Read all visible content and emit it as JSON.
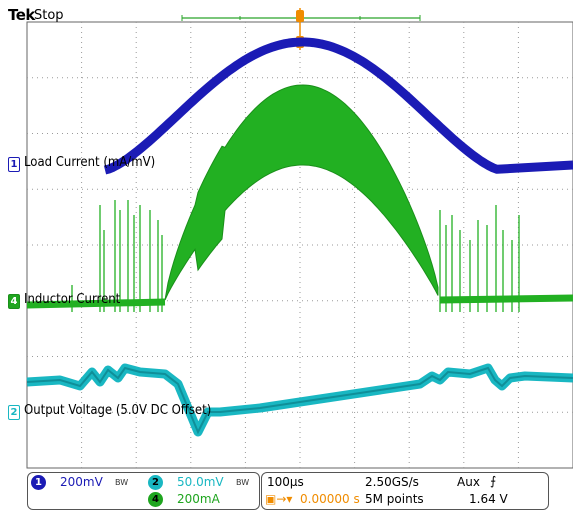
{
  "header": {
    "brand": "Tek",
    "status": "Stop"
  },
  "trace_labels": {
    "ch1": {
      "marker": "1",
      "label": "Load Current (mA/mV)"
    },
    "ch4": {
      "marker": "4",
      "label": "Inductor Current"
    },
    "ch2": {
      "marker": "2",
      "label": "Output Voltage (5.0V DC Offset)"
    }
  },
  "readouts": {
    "ch1": {
      "badge": "1",
      "scale": "200mV",
      "bw": "BW"
    },
    "ch2": {
      "badge": "2",
      "scale": "50.0mV",
      "bw": "BW"
    },
    "ch4": {
      "badge": "4",
      "scale": "200mA"
    },
    "horizontal": {
      "timebase": "100µs",
      "sample_rate": "2.50GS/s",
      "trigger_position": "0.00000 s",
      "record_length": "5M points"
    },
    "trigger": {
      "source": "Aux",
      "slope_symbol": "⨍",
      "level": "1.64 V"
    }
  },
  "colors": {
    "ch1": "#1b1bb5",
    "ch2": "#19b7c2",
    "ch4": "#1fa51f",
    "trigger": "#f08c00",
    "grid": "#9a9a9a"
  },
  "icons": {
    "trigger_marker": "trigger-t-icon",
    "slope": "rising-edge-icon"
  }
}
